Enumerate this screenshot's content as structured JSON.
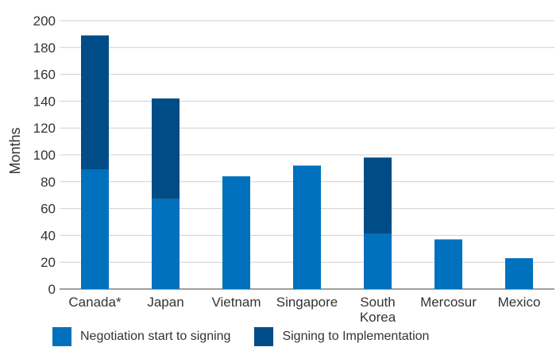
{
  "chart_data": {
    "type": "bar",
    "stacked": true,
    "title": "",
    "xlabel": "",
    "ylabel": "Months",
    "ylim": [
      0,
      200
    ],
    "yticks": [
      0,
      20,
      40,
      60,
      80,
      100,
      120,
      140,
      160,
      180,
      200
    ],
    "grid": true,
    "legend_position": "bottom",
    "categories": [
      "Canada*",
      "Japan",
      "Vietnam",
      "Singapore",
      "South Korea",
      "Mercosur",
      "Mexico"
    ],
    "series": [
      {
        "name": "Negotiation start to signing",
        "color": "#0071bc",
        "values": [
          89,
          67,
          84,
          92,
          41,
          37,
          23
        ]
      },
      {
        "name": "Signing to Implementation",
        "color": "#004c86",
        "values": [
          100,
          75,
          0,
          0,
          57,
          0,
          0
        ]
      }
    ]
  }
}
